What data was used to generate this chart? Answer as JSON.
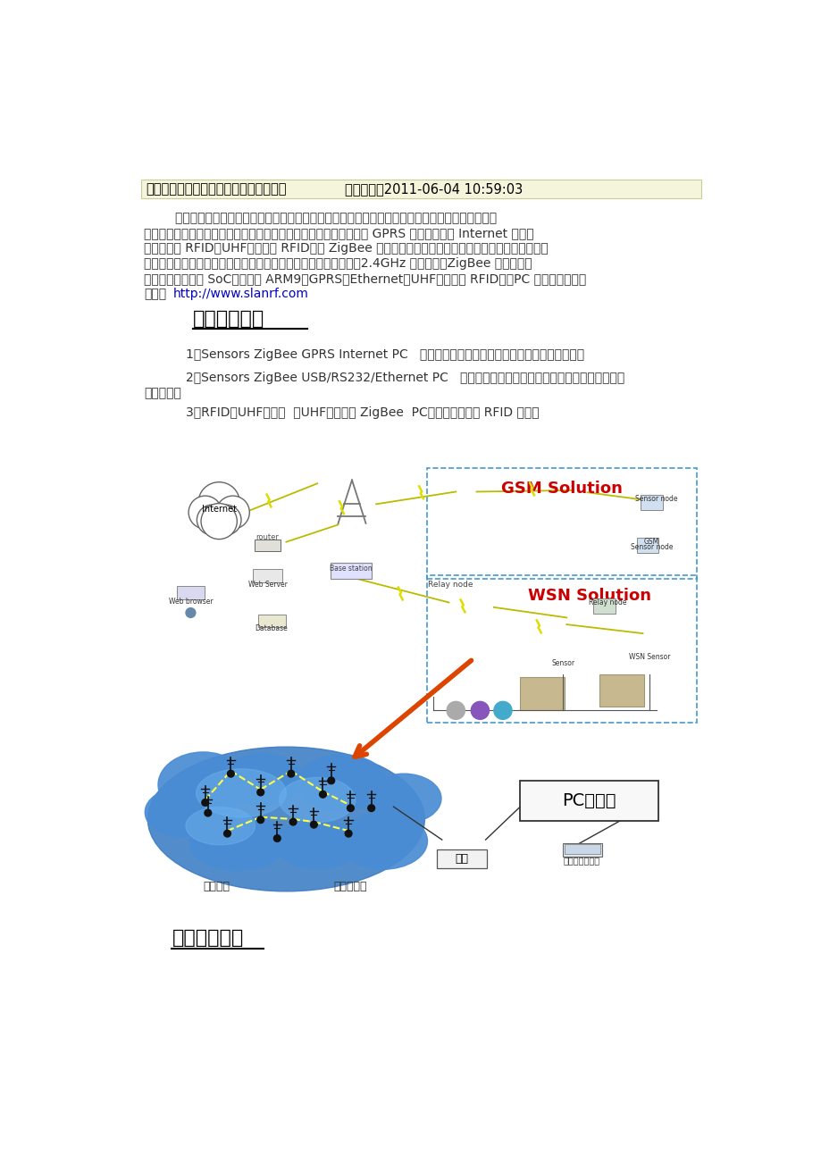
{
  "page_bg": "#ffffff",
  "header_bg": "#f5f5dc",
  "header_border": "#cccc99",
  "header_text_bold": "感智物联网工程专业实训实验室建设方案",
  "header_text_normal": "发布时间：2011-06-04 10:59:03",
  "body_text_color": "#333333",
  "link_color": "#0000cc",
  "link_text": "http://www.slanrf.com",
  "section1_title": "一、方案概述",
  "section2_title": "二、产品简介",
  "para_lines": [
    "        感智物联网工程专业实训实验室方案系针对物联网技术应用开发与教学的整体解决方案，全方位覆",
    "盖物联网所涉及的所有技术，从无线传感器硬件到嵌入式软件系统到 GPRS 网络通讯再到 Internet 端应用",
    "软件，以及 RFID（UHF，超高频 RFID）与 ZigBee 网络的结合应用，全面诠释了物联网技术在行业应用",
    "的技术基础。该方案所涉及到的物联网技术主要包括：电子电路、2.4GHz 高频通讯、ZigBee 无线网络、",
    "无线传感器、无线 SoC、嵌入式 ARM9、GPRS、Ethernet、UHF（超高频 RFID）、PC 软件编程。官网"
  ],
  "last_line_prefix": "地址：",
  "item1": "1、Sensors ZigBee GPRS Internet PC   （光照传感器、温度传感器、三维加速度传感器）",
  "item2a": "2、Sensors ZigBee USB/RS232/Ethernet PC   （选配：温湿度、烟雾、红外、压力传感器，无线",
  "item2b": "电机节点）",
  "item3": "3、RFID（UHF）标签  （UHF）读卡器 ZigBee  PC（同时读取多个 RFID 标签）",
  "gsm_label": "GSM Solution",
  "wsn_label": "WSN Solution",
  "pc_label": "PC机部分",
  "gw_label": "网关",
  "user_label": "用户访问管理端",
  "area_label": "监测区域",
  "sensor_label": "传感器节点",
  "solution_color": "#cc0000",
  "box_border_color": "#4499cc",
  "orange_arrow_color": "#dd4400"
}
